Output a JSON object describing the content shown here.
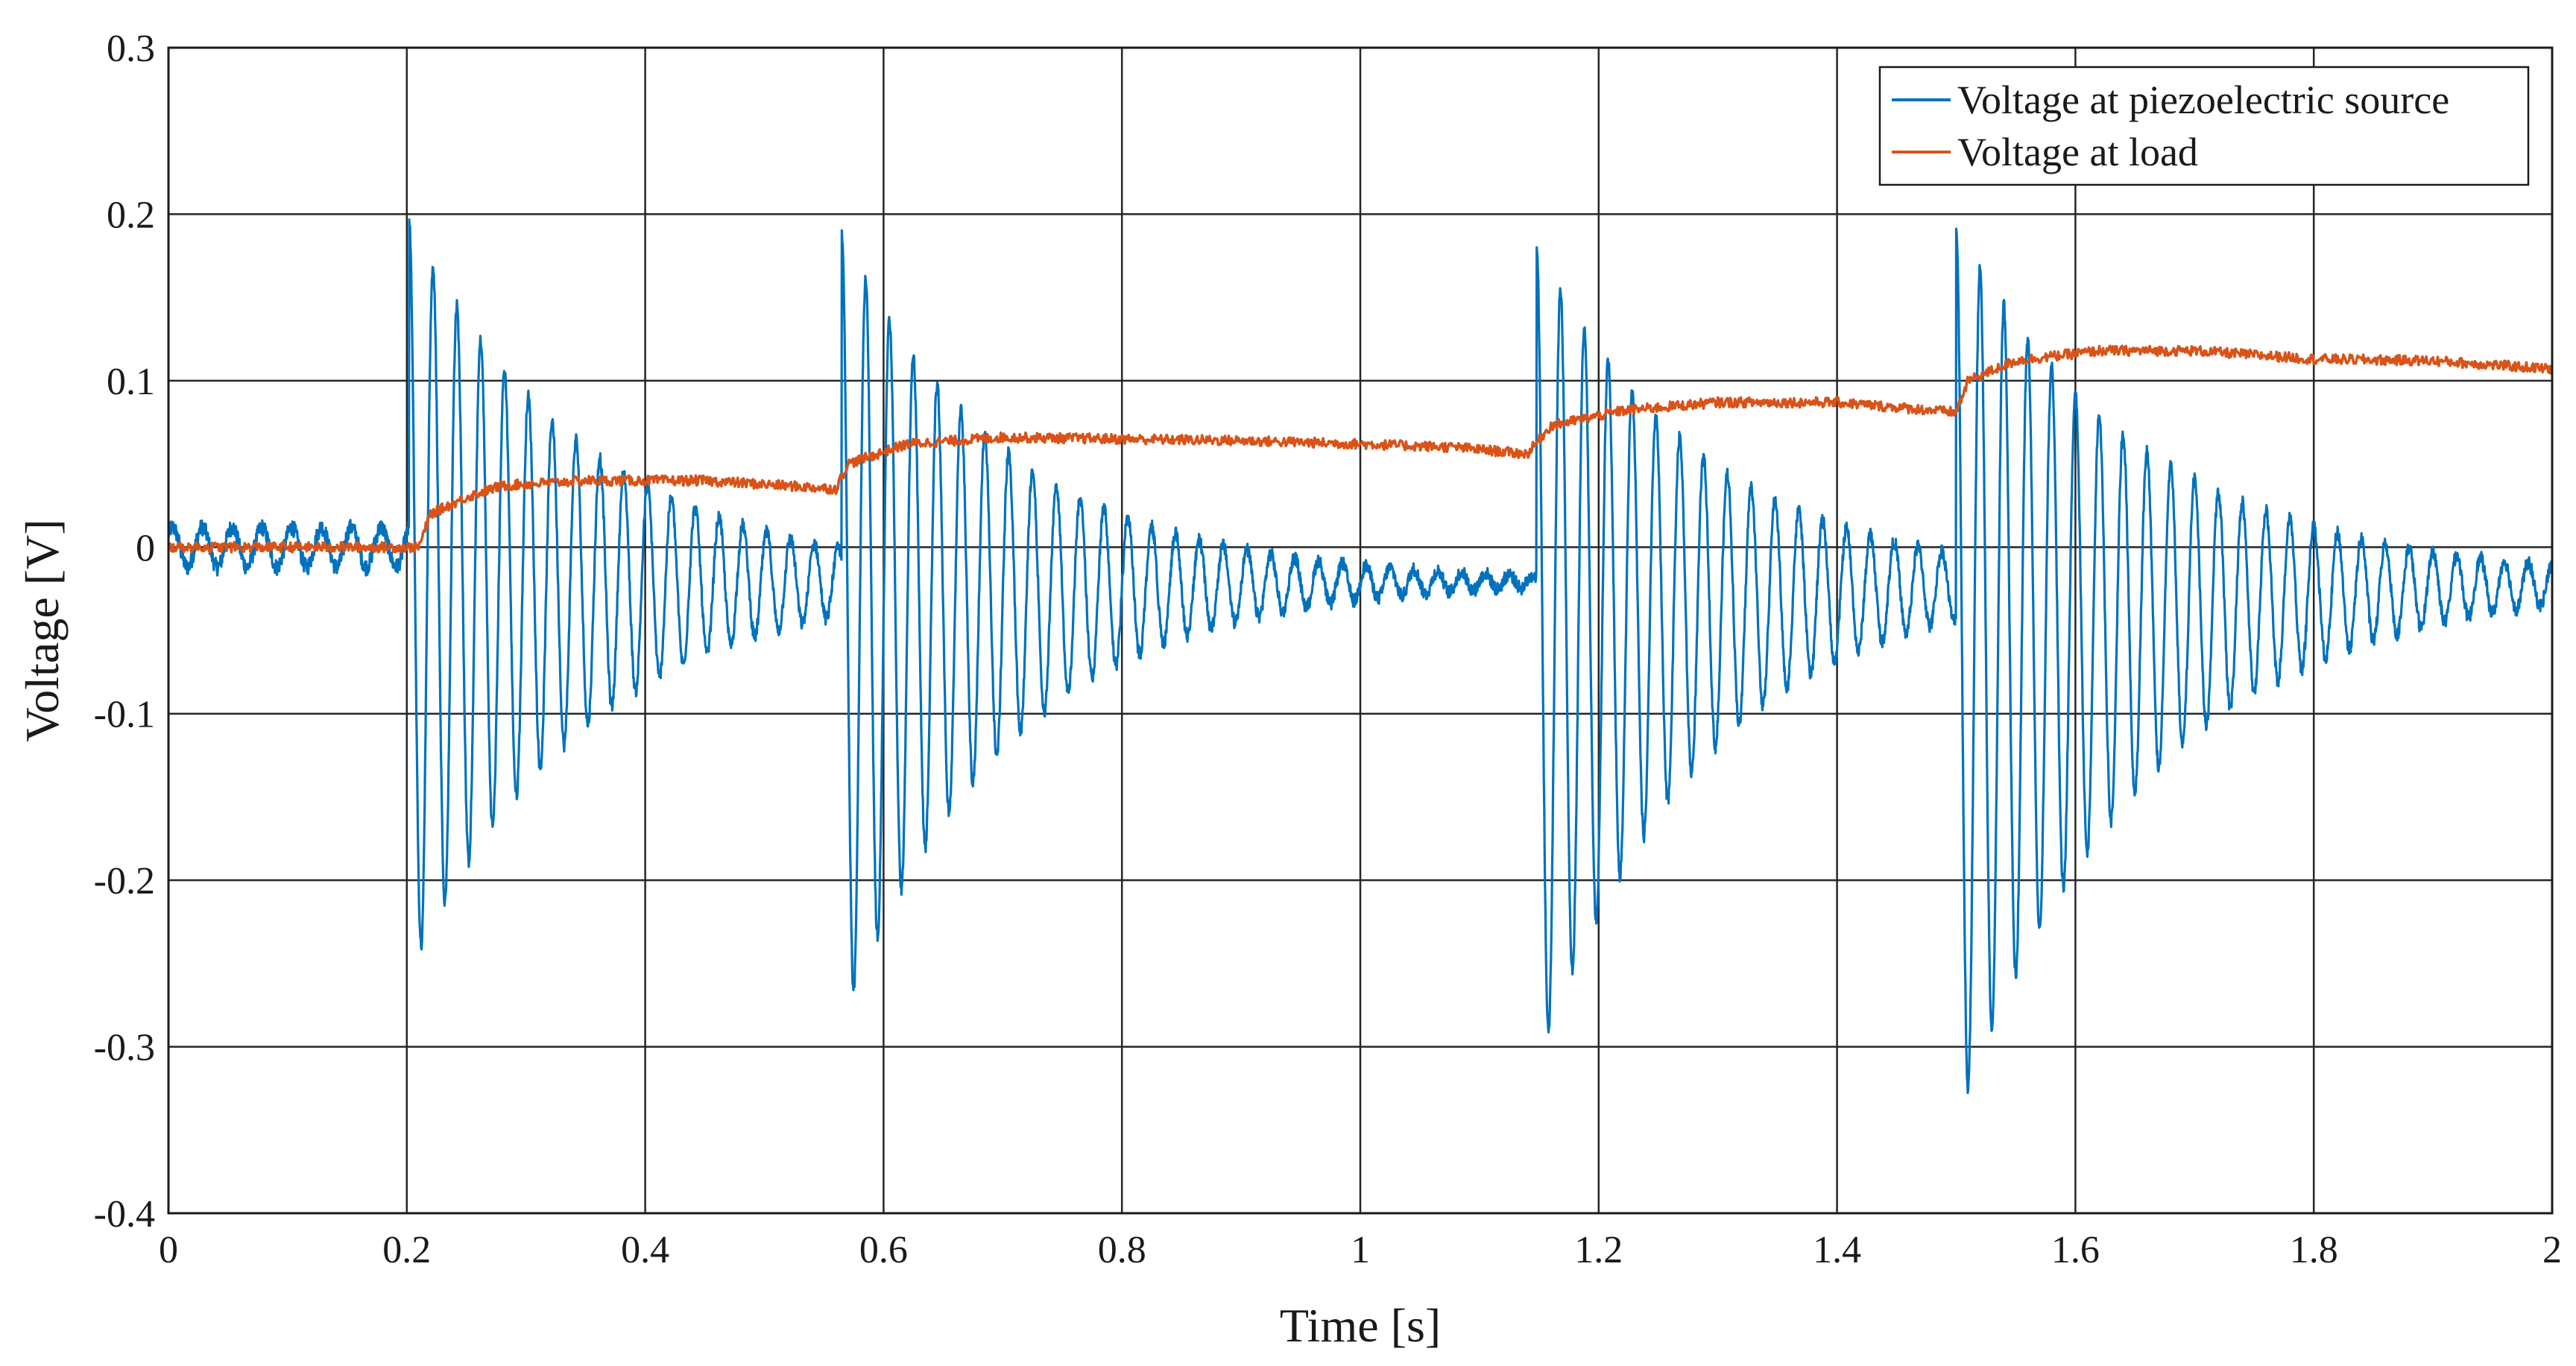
{
  "chart_data": {
    "type": "line",
    "title": "",
    "xlabel": "Time [s]",
    "ylabel": "Voltage [V]",
    "xlim": [
      0,
      2
    ],
    "ylim": [
      -0.4,
      0.3
    ],
    "grid": true,
    "legend_position": "top-right",
    "x_ticks": [
      0,
      0.2,
      0.4,
      0.6,
      0.8,
      1,
      1.2,
      1.4,
      1.6,
      1.8,
      2
    ],
    "x_tick_labels": [
      "0",
      "0.2",
      "0.4",
      "0.6",
      "0.8",
      "1",
      "1.2",
      "1.4",
      "1.6",
      "1.8",
      "2"
    ],
    "y_ticks": [
      0.3,
      0.2,
      0.1,
      0,
      -0.1,
      -0.2,
      -0.3,
      -0.4
    ],
    "y_tick_labels": [
      "0.3",
      "0.2",
      "0.1",
      "0",
      "-0.1",
      "-0.2",
      "-0.3",
      "-0.4"
    ],
    "series": [
      {
        "name": "Voltage at piezoelectric source",
        "color": "#0072BD",
        "description": "Damped oscillation bursts at 4 impacts",
        "baseline_before_first_burst": 0.0,
        "baseline_after_bursts": -0.02,
        "oscillation_frequency_hz": 50,
        "bursts": [
          {
            "start": 0.202,
            "end": 0.56,
            "peak_max": 0.195,
            "peak_min": -0.255,
            "decay_s": 0.15
          },
          {
            "start": 0.565,
            "end": 0.93,
            "peak_max": 0.188,
            "peak_min": -0.285,
            "decay_s": 0.14
          },
          {
            "start": 1.148,
            "end": 1.5,
            "peak_max": 0.182,
            "peak_min": -0.312,
            "decay_s": 0.14
          },
          {
            "start": 1.5,
            "end": 2.0,
            "peak_max": 0.192,
            "peak_min": -0.345,
            "decay_s": 0.16
          }
        ]
      },
      {
        "name": "Voltage at load",
        "color": "#D95319",
        "description": "Stepped rising load voltage",
        "x": [
          0,
          0.21,
          0.22,
          0.25,
          0.28,
          0.35,
          0.45,
          0.56,
          0.57,
          0.62,
          0.7,
          0.8,
          0.9,
          1.0,
          1.08,
          1.14,
          1.16,
          1.22,
          1.3,
          1.4,
          1.5,
          1.51,
          1.55,
          1.62,
          1.7,
          1.8,
          1.9,
          2.0
        ],
        "values": [
          0,
          0,
          0.02,
          0.03,
          0.037,
          0.04,
          0.04,
          0.035,
          0.05,
          0.062,
          0.066,
          0.065,
          0.064,
          0.062,
          0.06,
          0.056,
          0.073,
          0.082,
          0.087,
          0.087,
          0.081,
          0.1,
          0.112,
          0.118,
          0.118,
          0.113,
          0.112,
          0.107
        ]
      }
    ]
  }
}
